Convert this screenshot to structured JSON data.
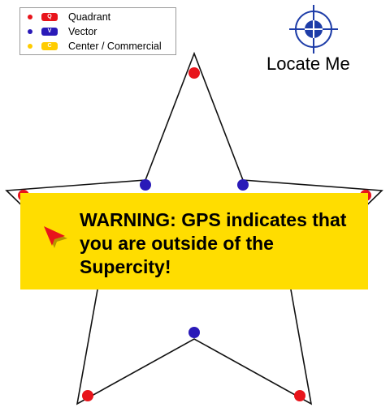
{
  "legend": {
    "items": [
      {
        "dot_color": "#e8141b",
        "badge_text": "Q",
        "badge_color": "#e8141b",
        "label": "Quadrant"
      },
      {
        "dot_color": "#2a1ab8",
        "badge_text": "V",
        "badge_color": "#2a1ab8",
        "label": "Vector"
      },
      {
        "dot_color": "#ffcc00",
        "badge_text": "C",
        "badge_color": "#ffcc00",
        "label": "Center / Commercial"
      }
    ]
  },
  "locate_button": {
    "label": "Locate Me",
    "icon": "crosshair-icon",
    "color": "#1e3da8"
  },
  "map": {
    "outline_color": "#111111",
    "quadrant_color": "#e8141b",
    "vector_color": "#2a1ab8"
  },
  "warning": {
    "text": "WARNING: GPS indicates that you are outside of the Supercity!",
    "background": "#ffdd00",
    "icon": "pointer-arrow-icon",
    "icon_color": "#e8141b"
  }
}
